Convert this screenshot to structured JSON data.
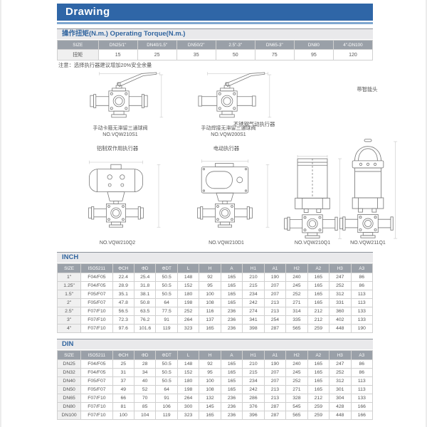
{
  "page": {
    "title": "Drawing"
  },
  "colors": {
    "header_bar": "#2f66a7",
    "header_strip": "#7fa7d0",
    "accent_blue": "#31659f",
    "table_header_bg": "#9aa0a8",
    "section_bg": "#e9e9eb"
  },
  "torque": {
    "section_title": "操作扭矩(N.m.) Operating Torque(N.m.)",
    "headers": [
      "SIZE",
      "DN25/1\"",
      "DN40/1.5\"",
      "DN50/2\"",
      "2.5\"-3\"",
      "DN65-3\"",
      "DN80",
      "4\"-DN100"
    ],
    "rows": [
      [
        "扭矩",
        "15",
        "25",
        "35",
        "50",
        "75",
        "95",
        "120"
      ]
    ],
    "note": "注意：选择执行器建议增加20%安全余量"
  },
  "drawings": [
    {
      "caption": "手动卡箍无滞留三通球阀",
      "model": "NO.VQW210S1"
    },
    {
      "caption": "手动焊接无滞留三通球阀",
      "model": "NO.VQW200S1"
    },
    {
      "caption": "铝制双作用执行器",
      "model": "NO.VQW210Q2"
    },
    {
      "caption": "电动执行器",
      "model": "NO.VQW210D1"
    },
    {
      "caption": "不锈钢气动执行器",
      "model": "NO.VQW210Q1"
    },
    {
      "caption": "带智能头",
      "model": "NO.VQW211Q1"
    }
  ],
  "inch": {
    "section_title": "INCH",
    "headers": [
      "SIZE",
      "ISO5211",
      "ΦCH",
      "ΦD",
      "ΦDT",
      "L",
      "H",
      "A",
      "H1",
      "A1",
      "H2",
      "A2",
      "H3",
      "A3"
    ],
    "rows": [
      [
        "1\"",
        "F04/F05",
        "22.4",
        "25.4",
        "50.5",
        "148",
        "92",
        "165",
        "210",
        "190",
        "240",
        "165",
        "247",
        "86"
      ],
      [
        "1.25\"",
        "F04/F05",
        "28.9",
        "31.8",
        "50.5",
        "152",
        "95",
        "165",
        "215",
        "207",
        "245",
        "165",
        "252",
        "86"
      ],
      [
        "1.5\"",
        "F05/F07",
        "35.1",
        "38.1",
        "50.5",
        "180",
        "100",
        "165",
        "234",
        "207",
        "252",
        "165",
        "312",
        "113"
      ],
      [
        "2\"",
        "F05/F07",
        "47.8",
        "50.8",
        "64",
        "198",
        "108",
        "165",
        "242",
        "213",
        "271",
        "165",
        "331",
        "113"
      ],
      [
        "2.5\"",
        "F07/F10",
        "56.5",
        "63.5",
        "77.5",
        "252",
        "116",
        "236",
        "274",
        "213",
        "314",
        "212",
        "360",
        "133"
      ],
      [
        "3\"",
        "F07/F10",
        "72.3",
        "76.2",
        "91",
        "264",
        "137",
        "236",
        "341",
        "254",
        "335",
        "212",
        "402",
        "133"
      ],
      [
        "4\"",
        "F07/F10",
        "97.6",
        "101.6",
        "119",
        "323",
        "165",
        "236",
        "398",
        "287",
        "565",
        "259",
        "448",
        "190"
      ]
    ]
  },
  "din": {
    "section_title": "DIN",
    "headers": [
      "SIZE",
      "ISO5211",
      "ΦCH",
      "ΦD",
      "ΦDT",
      "L",
      "H",
      "A",
      "H1",
      "A1",
      "H2",
      "A2",
      "H3",
      "A3"
    ],
    "rows": [
      [
        "DN25",
        "F04/F05",
        "25",
        "28",
        "50.5",
        "148",
        "92",
        "165",
        "210",
        "190",
        "240",
        "165",
        "247",
        "86"
      ],
      [
        "DN32",
        "F04/F05",
        "31",
        "34",
        "50.5",
        "152",
        "95",
        "165",
        "215",
        "207",
        "245",
        "165",
        "252",
        "86"
      ],
      [
        "DN40",
        "F05/F07",
        "37",
        "40",
        "50.5",
        "180",
        "100",
        "165",
        "234",
        "207",
        "252",
        "165",
        "312",
        "113"
      ],
      [
        "DN50",
        "F05/F07",
        "49",
        "52",
        "64",
        "198",
        "108",
        "165",
        "242",
        "213",
        "271",
        "165",
        "301",
        "113"
      ],
      [
        "DN65",
        "F07/F10",
        "66",
        "70",
        "91",
        "264",
        "132",
        "236",
        "286",
        "213",
        "328",
        "212",
        "304",
        "133"
      ],
      [
        "DN80",
        "F07/F10",
        "81",
        "85",
        "106",
        "300",
        "145",
        "236",
        "376",
        "287",
        "545",
        "259",
        "428",
        "166"
      ],
      [
        "DN100",
        "F07/F10",
        "100",
        "104",
        "119",
        "323",
        "165",
        "236",
        "396",
        "287",
        "565",
        "259",
        "448",
        "166"
      ]
    ]
  }
}
